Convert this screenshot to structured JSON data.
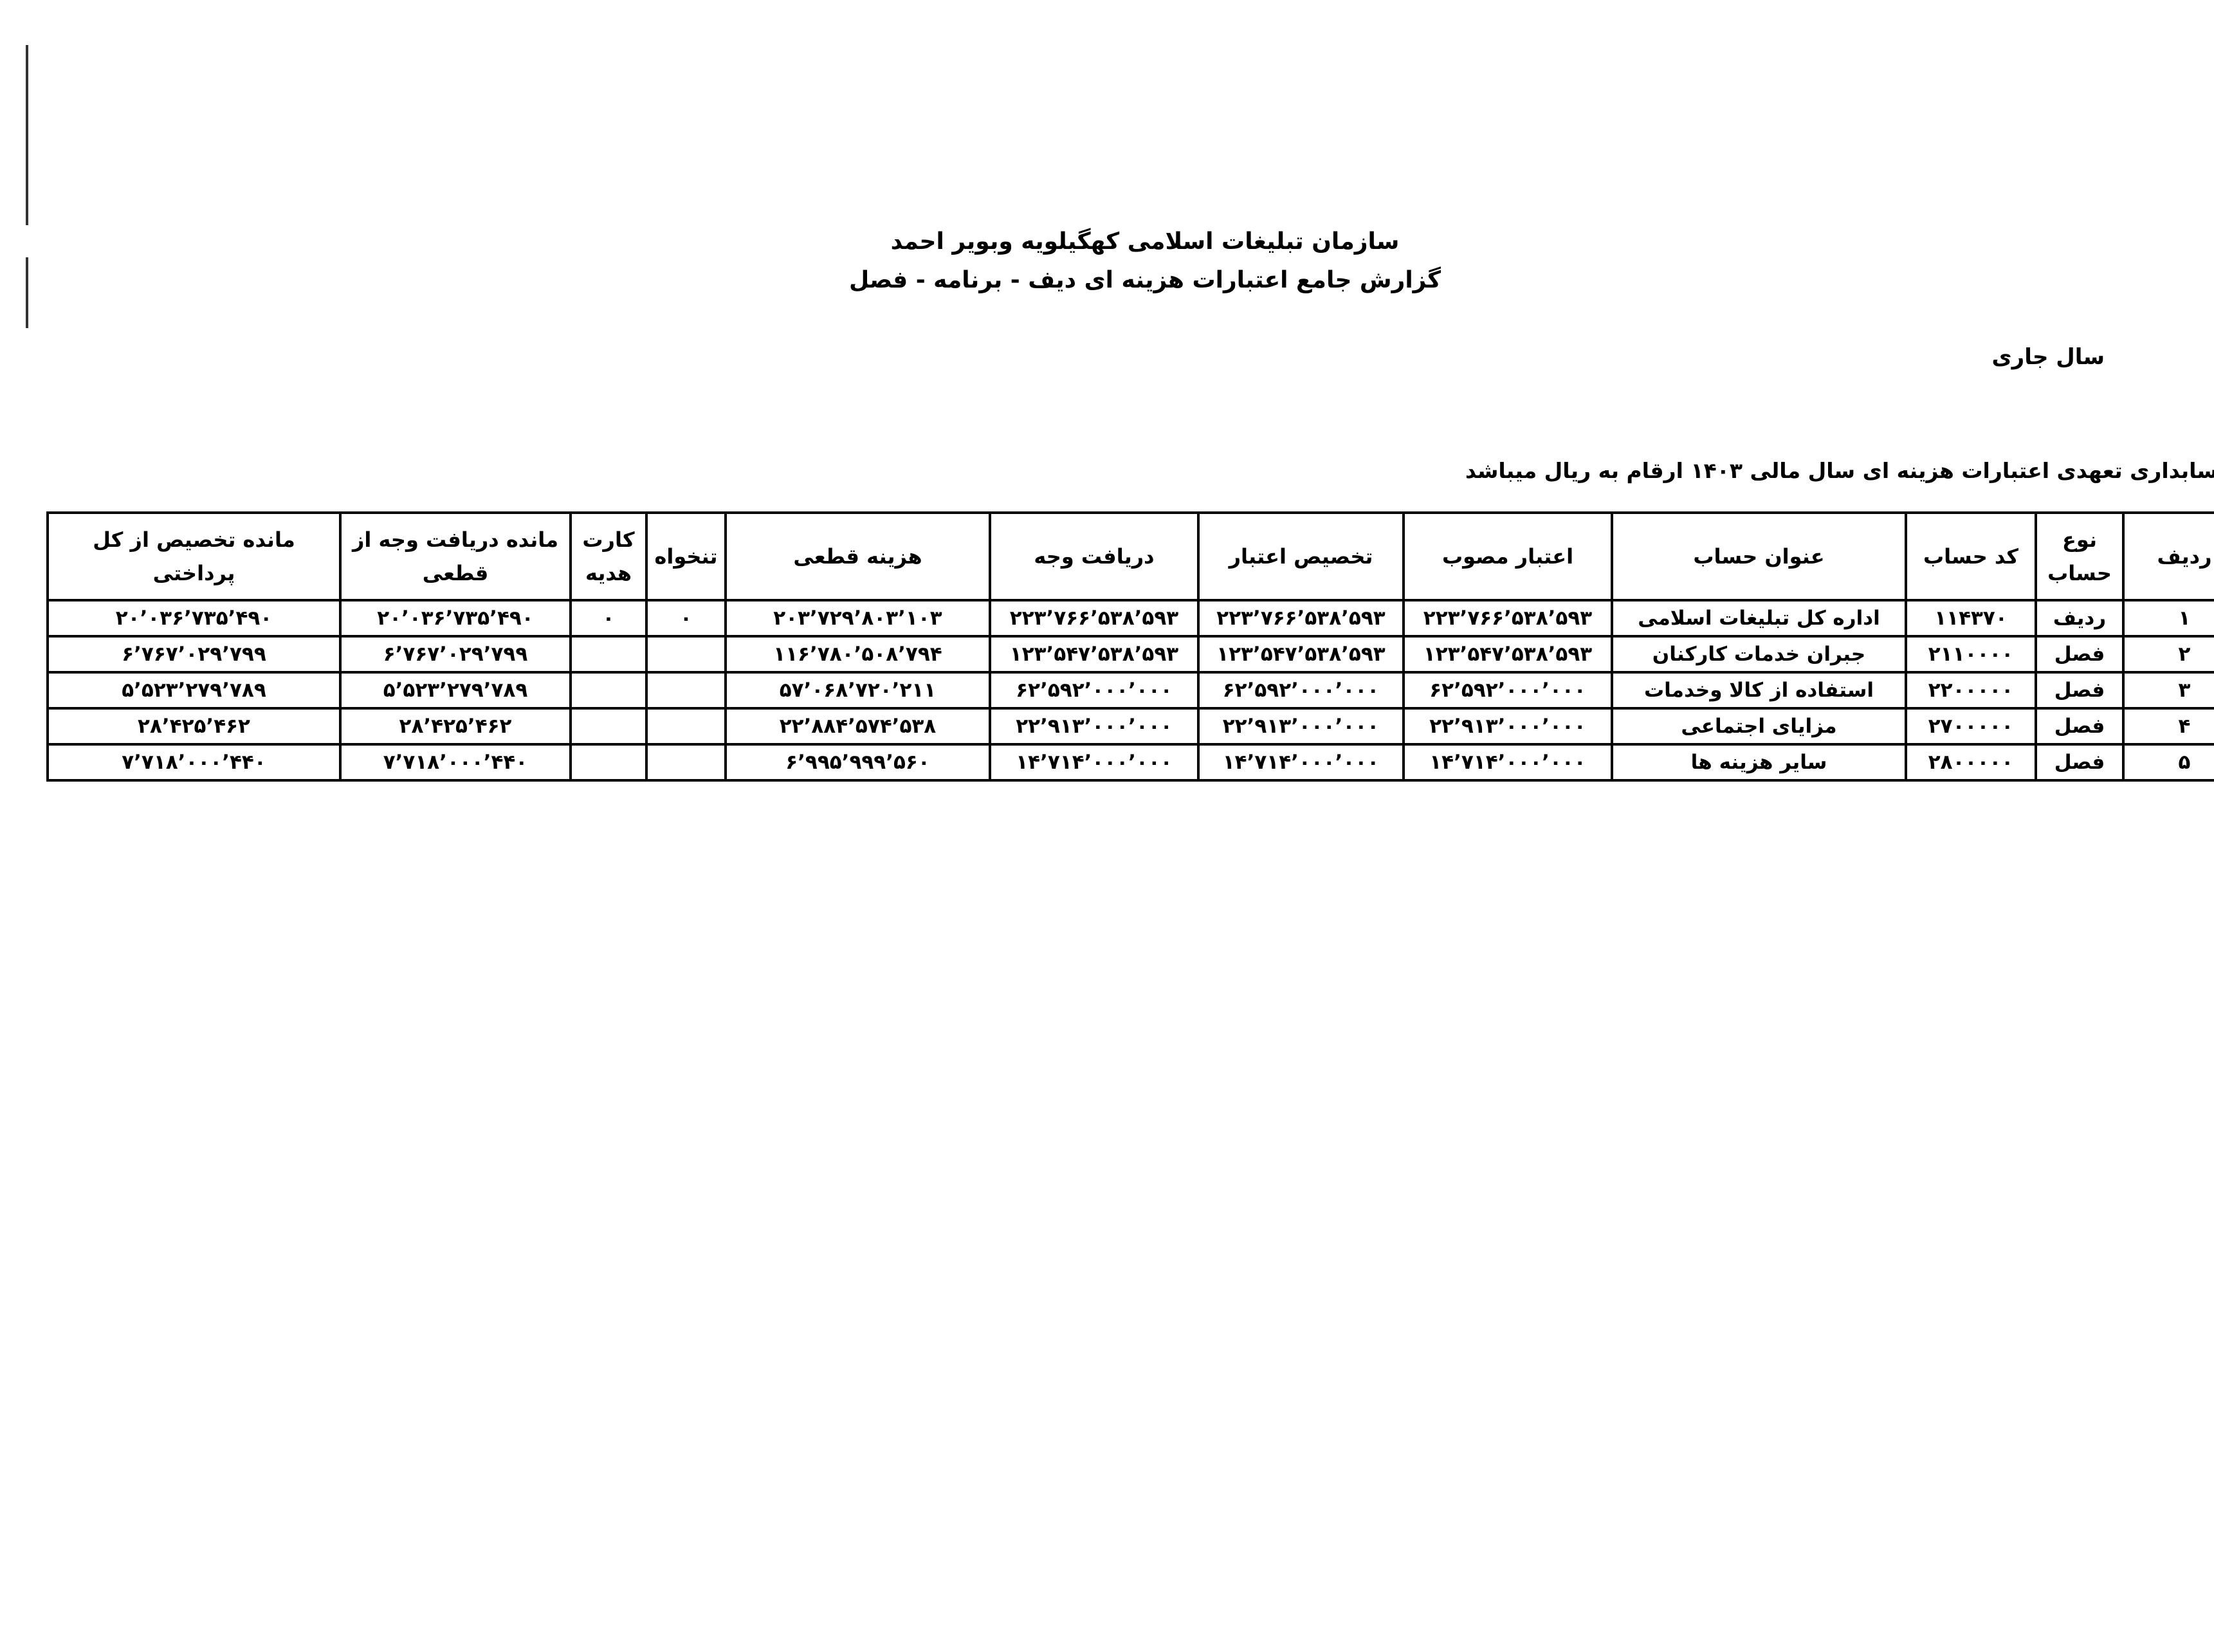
{
  "header": {
    "org_title": "سازمان تبلیغات اسلامی کهگیلویه وبویر احمد",
    "report_title": "گزارش جامع اعتبارات هزینه ای دیف - برنامه - فصل",
    "period": "سال جاری",
    "note": "سابداری تعهدی اعتبارات هزینه ای سال مالی ۱۴۰۳ ارقام به ریال میباشد"
  },
  "table": {
    "columns": [
      "ردیف",
      "نوع حساب",
      "کد حساب",
      "عنوان حساب",
      "اعتبار مصوب",
      "تخصیص اعتبار",
      "دریافت وجه",
      "هزینه قطعی",
      "تنخواه",
      "کارت هدیه",
      "مانده دریافت وجه از قطعی",
      "مانده تخصیص از کل پرداختی"
    ],
    "rows": [
      [
        "۱",
        "ردیف",
        "۱۱۴۳۷۰",
        "اداره کل تبلیغات اسلامی",
        "۲۲۳٬۷۶۶٬۵۳۸٬۵۹۳",
        "۲۲۳٬۷۶۶٬۵۳۸٬۵۹۳",
        "۲۲۳٬۷۶۶٬۵۳۸٬۵۹۳",
        "۲۰۳٬۷۲۹٬۸۰۳٬۱۰۳",
        "۰",
        "۰",
        "۲۰٬۰۳۶٬۷۳۵٬۴۹۰",
        "۲۰٬۰۳۶٬۷۳۵٬۴۹۰"
      ],
      [
        "۲",
        "فصل",
        "۲۱۱۰۰۰۰",
        "جبران خدمات کارکنان",
        "۱۲۳٬۵۴۷٬۵۳۸٬۵۹۳",
        "۱۲۳٬۵۴۷٬۵۳۸٬۵۹۳",
        "۱۲۳٬۵۴۷٬۵۳۸٬۵۹۳",
        "۱۱۶٬۷۸۰٬۵۰۸٬۷۹۴",
        "",
        "",
        "۶٬۷۶۷٬۰۲۹٬۷۹۹",
        "۶٬۷۶۷٬۰۲۹٬۷۹۹"
      ],
      [
        "۳",
        "فصل",
        "۲۲۰۰۰۰۰",
        "استفاده از کالا وخدمات",
        "۶۲٬۵۹۲٬۰۰۰٬۰۰۰",
        "۶۲٬۵۹۲٬۰۰۰٬۰۰۰",
        "۶۲٬۵۹۲٬۰۰۰٬۰۰۰",
        "۵۷٬۰۶۸٬۷۲۰٬۲۱۱",
        "",
        "",
        "۵٬۵۲۳٬۲۷۹٬۷۸۹",
        "۵٬۵۲۳٬۲۷۹٬۷۸۹"
      ],
      [
        "۴",
        "فصل",
        "۲۷۰۰۰۰۰",
        "مزایای اجتماعی",
        "۲۲٬۹۱۳٬۰۰۰٬۰۰۰",
        "۲۲٬۹۱۳٬۰۰۰٬۰۰۰",
        "۲۲٬۹۱۳٬۰۰۰٬۰۰۰",
        "۲۲٬۸۸۴٬۵۷۴٬۵۳۸",
        "",
        "",
        "۲۸٬۴۲۵٬۴۶۲",
        "۲۸٬۴۲۵٬۴۶۲"
      ],
      [
        "۵",
        "فصل",
        "۲۸۰۰۰۰۰",
        "سایر هزینه ها",
        "۱۴٬۷۱۴٬۰۰۰٬۰۰۰",
        "۱۴٬۷۱۴٬۰۰۰٬۰۰۰",
        "۱۴٬۷۱۴٬۰۰۰٬۰۰۰",
        "۶٬۹۹۵٬۹۹۹٬۵۶۰",
        "",
        "",
        "۷٬۷۱۸٬۰۰۰٬۴۴۰",
        "۷٬۷۱۸٬۰۰۰٬۴۴۰"
      ]
    ]
  }
}
